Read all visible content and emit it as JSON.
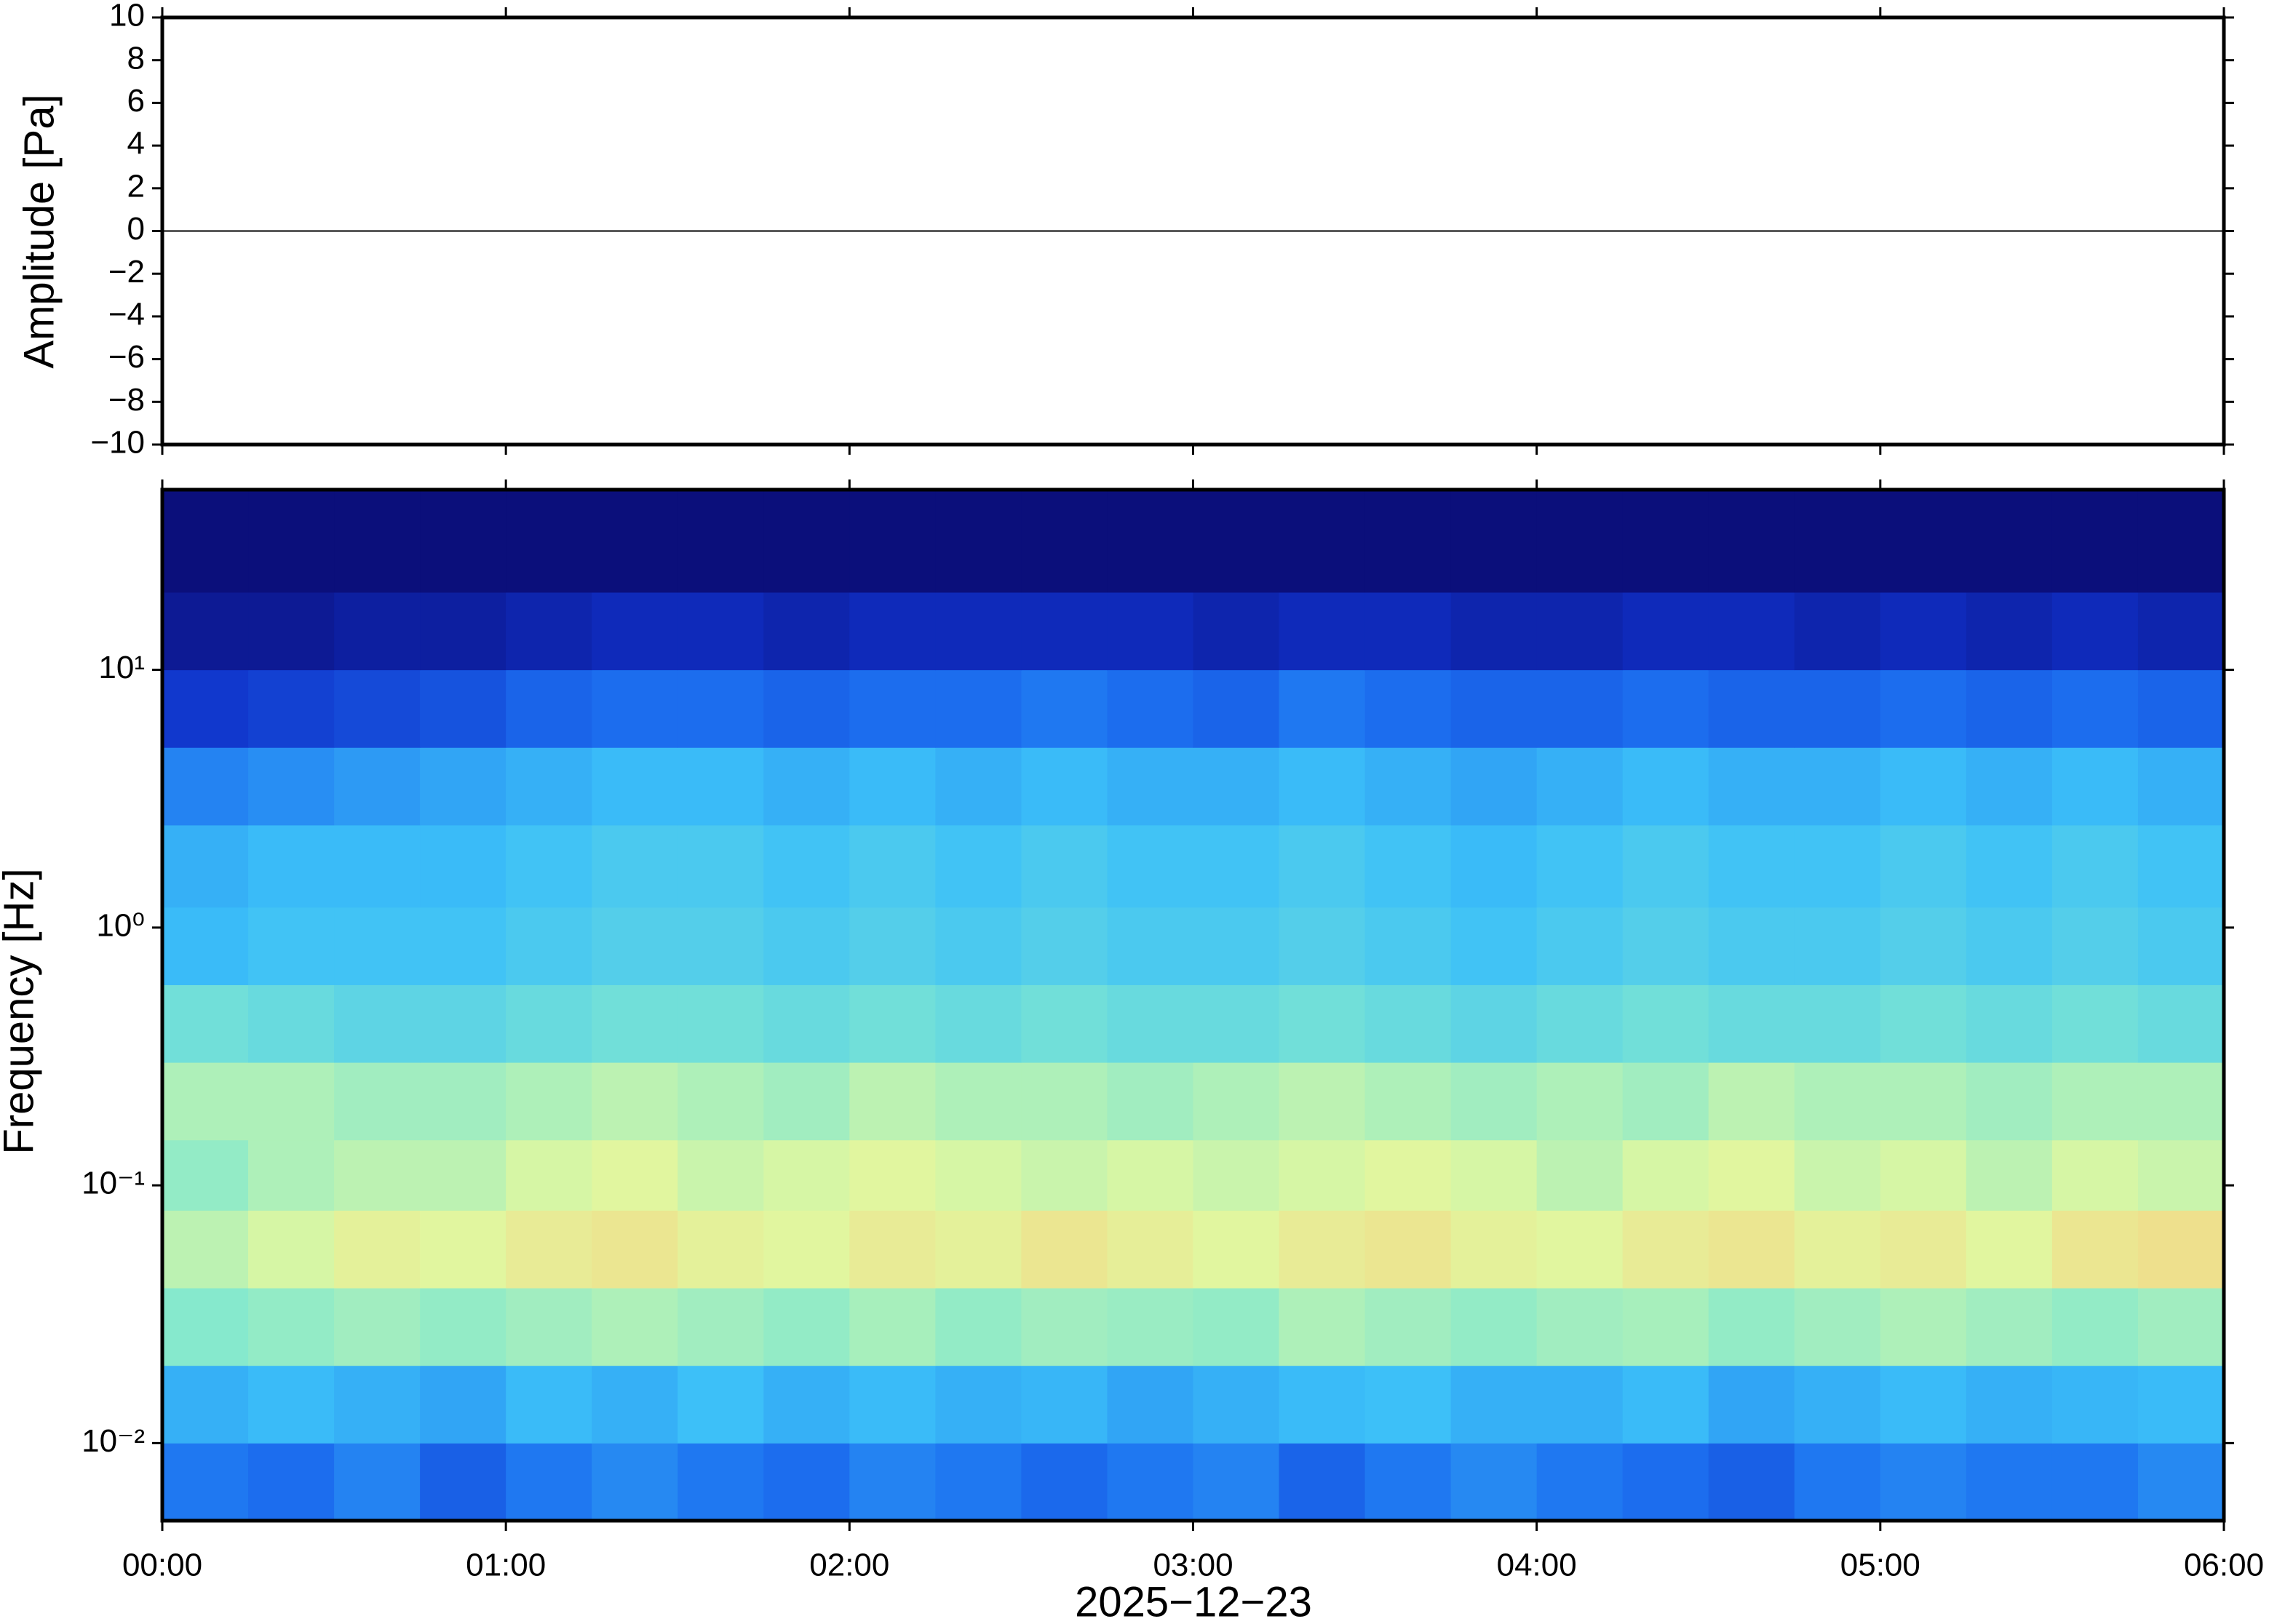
{
  "chart_data": [
    {
      "type": "line",
      "ylabel": "Amplitude [Pa]",
      "xlim": [
        0,
        360
      ],
      "xticks": [
        0,
        60,
        120,
        180,
        240,
        300,
        360
      ],
      "ylim": [
        -10,
        10
      ],
      "yticks": [
        {
          "value": -10,
          "label": "−10"
        },
        {
          "value": -8,
          "label": "−8"
        },
        {
          "value": -6,
          "label": "−6"
        },
        {
          "value": -4,
          "label": "−4"
        },
        {
          "value": -2,
          "label": "−2"
        },
        0,
        2,
        4,
        6,
        8,
        10
      ],
      "x": [
        0,
        30,
        60,
        90,
        120,
        150,
        180,
        210,
        240,
        270,
        300,
        330,
        360
      ],
      "series": [
        {
          "color": "#000000",
          "values": [
            0,
            0,
            0,
            0,
            0,
            0,
            0,
            0,
            0,
            0,
            0,
            0,
            0
          ]
        }
      ]
    },
    {
      "type": "heatmap",
      "ylabel": "Frequency [Hz]",
      "xlabel": "2025−12−23",
      "xlim": [
        0,
        360
      ],
      "xticks": [
        {
          "value": 0,
          "label": "00:00"
        },
        {
          "value": 60,
          "label": "01:00"
        },
        {
          "value": 120,
          "label": "02:00"
        },
        {
          "value": 180,
          "label": "03:00"
        },
        {
          "value": 240,
          "label": "04:00"
        },
        {
          "value": 300,
          "label": "05:00"
        },
        {
          "value": 360,
          "label": "06:00"
        }
      ],
      "ylim": [
        0.005,
        50
      ],
      "log_y": true,
      "yticks": [
        {
          "value": 0.01,
          "label": "10⁻²"
        },
        {
          "value": 0.1,
          "label": "10⁻¹"
        },
        {
          "value": 1,
          "label": "10⁰"
        },
        {
          "value": 10,
          "label": "10¹"
        }
      ],
      "colorscale": [
        "#0a0a6e",
        "#1030c8",
        "#1c70f0",
        "#3cc0f8",
        "#80e8d0",
        "#e0f8a0",
        "#f8d080",
        "#f08050"
      ],
      "x_edges": [
        0,
        15,
        30,
        45,
        60,
        75,
        90,
        105,
        120,
        135,
        150,
        165,
        180,
        195,
        210,
        225,
        240,
        255,
        270,
        285,
        300,
        315,
        330,
        345,
        360
      ],
      "y_edges": [
        0.005,
        0.01,
        0.02,
        0.04,
        0.08,
        0.15,
        0.3,
        0.6,
        1.2,
        2.5,
        5,
        10,
        20,
        50
      ],
      "z": [
        [
          0.3,
          0.28,
          0.32,
          0.25,
          0.3,
          0.33,
          0.3,
          0.28,
          0.32,
          0.3,
          0.27,
          0.3,
          0.32,
          0.26,
          0.3,
          0.33,
          0.3,
          0.28,
          0.25,
          0.3,
          0.32,
          0.3,
          0.3,
          0.33
        ],
        [
          0.4,
          0.42,
          0.4,
          0.38,
          0.42,
          0.4,
          0.43,
          0.4,
          0.42,
          0.4,
          0.41,
          0.38,
          0.4,
          0.42,
          0.43,
          0.4,
          0.4,
          0.42,
          0.38,
          0.4,
          0.42,
          0.4,
          0.41,
          0.42
        ],
        [
          0.58,
          0.6,
          0.62,
          0.6,
          0.62,
          0.64,
          0.62,
          0.6,
          0.63,
          0.6,
          0.62,
          0.61,
          0.6,
          0.64,
          0.62,
          0.6,
          0.62,
          0.63,
          0.6,
          0.62,
          0.64,
          0.62,
          0.6,
          0.62
        ],
        [
          0.66,
          0.7,
          0.74,
          0.72,
          0.76,
          0.78,
          0.74,
          0.72,
          0.76,
          0.74,
          0.78,
          0.75,
          0.72,
          0.76,
          0.78,
          0.74,
          0.72,
          0.76,
          0.78,
          0.74,
          0.76,
          0.72,
          0.78,
          0.8
        ],
        [
          0.6,
          0.64,
          0.66,
          0.66,
          0.7,
          0.72,
          0.68,
          0.7,
          0.72,
          0.7,
          0.68,
          0.7,
          0.68,
          0.7,
          0.72,
          0.7,
          0.66,
          0.7,
          0.72,
          0.68,
          0.7,
          0.66,
          0.7,
          0.68
        ],
        [
          0.64,
          0.64,
          0.62,
          0.62,
          0.64,
          0.66,
          0.64,
          0.62,
          0.66,
          0.64,
          0.64,
          0.62,
          0.64,
          0.66,
          0.64,
          0.62,
          0.64,
          0.62,
          0.66,
          0.64,
          0.64,
          0.62,
          0.64,
          0.64
        ],
        [
          0.54,
          0.52,
          0.5,
          0.5,
          0.52,
          0.54,
          0.54,
          0.52,
          0.54,
          0.52,
          0.54,
          0.52,
          0.52,
          0.54,
          0.52,
          0.5,
          0.52,
          0.54,
          0.52,
          0.52,
          0.54,
          0.52,
          0.54,
          0.52
        ],
        [
          0.42,
          0.44,
          0.44,
          0.44,
          0.46,
          0.48,
          0.48,
          0.46,
          0.48,
          0.46,
          0.48,
          0.46,
          0.46,
          0.48,
          0.46,
          0.44,
          0.46,
          0.48,
          0.46,
          0.46,
          0.48,
          0.46,
          0.48,
          0.46
        ],
        [
          0.4,
          0.42,
          0.42,
          0.42,
          0.44,
          0.46,
          0.46,
          0.44,
          0.46,
          0.44,
          0.46,
          0.44,
          0.44,
          0.46,
          0.44,
          0.42,
          0.44,
          0.46,
          0.44,
          0.44,
          0.46,
          0.44,
          0.46,
          0.44
        ],
        [
          0.32,
          0.34,
          0.36,
          0.38,
          0.4,
          0.42,
          0.42,
          0.4,
          0.42,
          0.4,
          0.42,
          0.4,
          0.4,
          0.42,
          0.4,
          0.38,
          0.4,
          0.42,
          0.4,
          0.4,
          0.42,
          0.4,
          0.42,
          0.4
        ],
        [
          0.16,
          0.18,
          0.2,
          0.22,
          0.26,
          0.28,
          0.28,
          0.26,
          0.28,
          0.28,
          0.3,
          0.28,
          0.26,
          0.3,
          0.28,
          0.26,
          0.26,
          0.28,
          0.26,
          0.26,
          0.28,
          0.26,
          0.28,
          0.26
        ],
        [
          0.06,
          0.06,
          0.08,
          0.08,
          0.1,
          0.12,
          0.12,
          0.1,
          0.12,
          0.12,
          0.12,
          0.12,
          0.1,
          0.12,
          0.12,
          0.1,
          0.1,
          0.12,
          0.12,
          0.1,
          0.12,
          0.1,
          0.12,
          0.1
        ],
        [
          0.02,
          0.02,
          0.02,
          0.02,
          0.02,
          0.02,
          0.02,
          0.02,
          0.02,
          0.02,
          0.02,
          0.02,
          0.02,
          0.02,
          0.02,
          0.02,
          0.02,
          0.02,
          0.02,
          0.02,
          0.02,
          0.02,
          0.02,
          0.02
        ]
      ]
    }
  ]
}
